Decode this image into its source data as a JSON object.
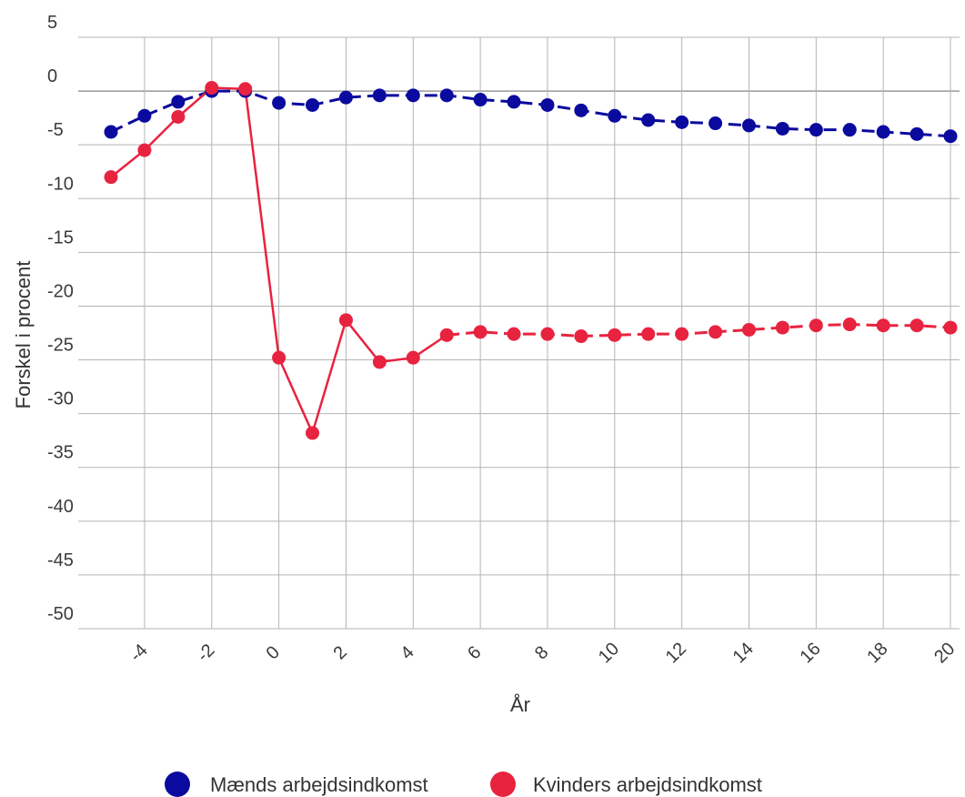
{
  "chart_data": {
    "type": "line",
    "title": "",
    "xlabel": "År",
    "ylabel": "Forskel i procent",
    "xlim": [
      -5,
      20
    ],
    "ylim": [
      -50,
      5
    ],
    "yticks": [
      5,
      0,
      -5,
      -10,
      -15,
      -20,
      -25,
      -30,
      -35,
      -40,
      -45,
      -50
    ],
    "xticks": [
      -4,
      -2,
      0,
      2,
      4,
      6,
      8,
      10,
      12,
      14,
      16,
      18,
      20
    ],
    "grid": true,
    "legend_position": "bottom",
    "x": [
      -5,
      -4,
      -3,
      -2,
      -1,
      0,
      1,
      2,
      3,
      4,
      5,
      6,
      7,
      8,
      9,
      10,
      11,
      12,
      13,
      14,
      15,
      16,
      17,
      18,
      19,
      20
    ],
    "series": [
      {
        "name": "Mænds arbejdsindkomst",
        "color": "#0a0a9e",
        "style": "dashed",
        "values": [
          -3.8,
          -2.3,
          -1.0,
          0.0,
          0.0,
          -1.1,
          -1.3,
          -0.6,
          -0.4,
          -0.4,
          -0.4,
          -0.8,
          -1.0,
          -1.3,
          -1.8,
          -2.3,
          -2.7,
          -2.9,
          -3.0,
          -3.2,
          -3.5,
          -3.6,
          -3.6,
          -3.8,
          -4.0,
          -4.2
        ]
      },
      {
        "name": "Kvinders arbejdsindkomst",
        "color": "#e8233f",
        "style": "solid-then-dashed",
        "dash_from_x": 5,
        "values": [
          -8.0,
          -5.5,
          -2.4,
          0.3,
          0.2,
          -24.8,
          -31.8,
          -21.3,
          -25.2,
          -24.8,
          -22.7,
          -22.4,
          -22.6,
          -22.6,
          -22.8,
          -22.7,
          -22.6,
          -22.6,
          -22.4,
          -22.2,
          -22.0,
          -21.8,
          -21.7,
          -21.8,
          -21.8,
          -22.0
        ]
      }
    ]
  }
}
